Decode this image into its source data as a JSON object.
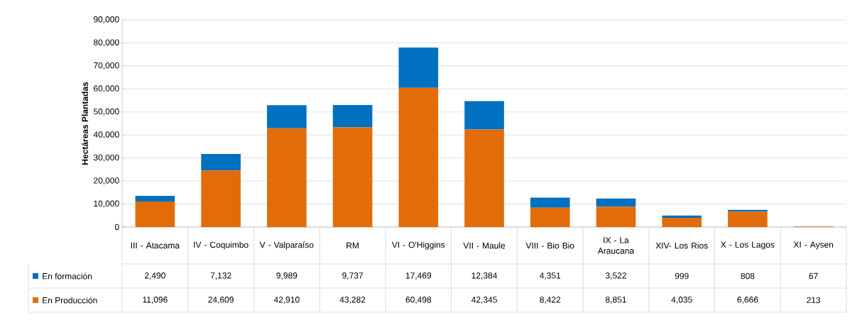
{
  "chart_data": {
    "type": "bar",
    "stacked": true,
    "ylabel": "Hectáreas Plantadas",
    "categories": [
      "III - Atacama",
      "IV - Coquimbo",
      "V - Valparaíso",
      "RM",
      "VI - O'Higgins",
      "VII - Maule",
      "VIII - Bio Bio",
      "IX - La Araucana",
      "XIV- Los Rios",
      "X - Los Lagos",
      "XI - Aysen"
    ],
    "series": [
      {
        "name": "En Producción",
        "color": "#e36c0a",
        "values": [
          11096,
          24609,
          42910,
          43282,
          60498,
          42345,
          8422,
          8851,
          4035,
          6666,
          213
        ],
        "value_labels": [
          "11,096",
          "24,609",
          "42,910",
          "43,282",
          "60,498",
          "42,345",
          "8,422",
          "8,851",
          "4,035",
          "6,666",
          "213"
        ]
      },
      {
        "name": "En formación",
        "color": "#0070c0",
        "values": [
          2490,
          7132,
          9989,
          9737,
          17469,
          12384,
          4351,
          3522,
          999,
          808,
          67
        ],
        "value_labels": [
          "2,490",
          "7,132",
          "9,989",
          "9,737",
          "17,469",
          "12,384",
          "4,351",
          "3,522",
          "999",
          "808",
          "67"
        ]
      }
    ],
    "ylim": [
      0,
      90000
    ],
    "yticks": [
      {
        "value": 0,
        "label": "0"
      },
      {
        "value": 10000,
        "label": "10,000"
      },
      {
        "value": 20000,
        "label": "20,000"
      },
      {
        "value": 30000,
        "label": "30,000"
      },
      {
        "value": 40000,
        "label": "40,000"
      },
      {
        "value": 50000,
        "label": "50,000"
      },
      {
        "value": 60000,
        "label": "60,000"
      },
      {
        "value": 70000,
        "label": "70,000"
      },
      {
        "value": 80000,
        "label": "80,000"
      },
      {
        "value": 90000,
        "label": "90,000"
      }
    ],
    "grid": "y",
    "legend": "bottom left"
  }
}
